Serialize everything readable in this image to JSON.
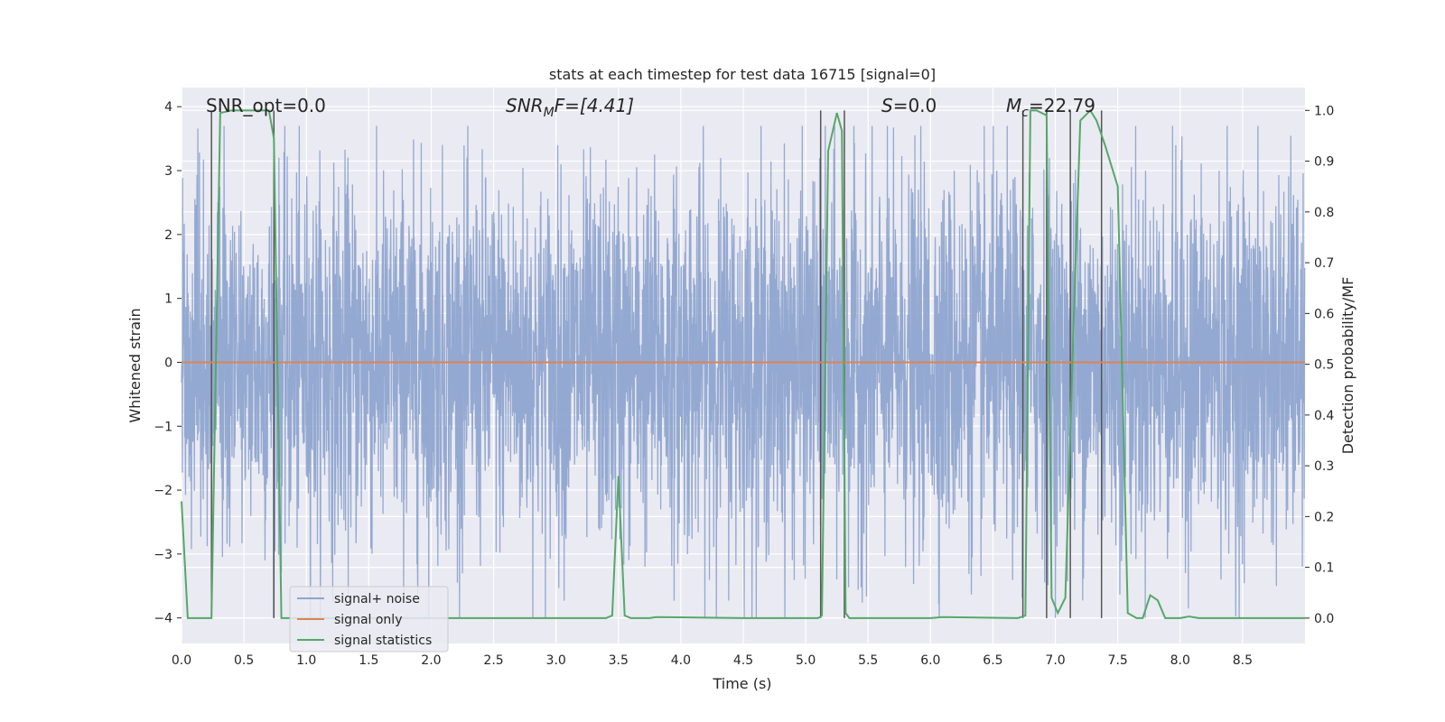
{
  "chart_data": {
    "type": "line",
    "title": "stats at each timestep for test data 16715 [signal=0]",
    "xlabel": "Time (s)",
    "ylabel": "Whitened strain",
    "y2label": "Detection probability/MF",
    "xlim": [
      0.0,
      9.0
    ],
    "ylim": [
      -4.4,
      4.3
    ],
    "y2lim": [
      -0.05,
      1.045
    ],
    "xticks": [
      "0.0",
      "0.5",
      "1.0",
      "1.5",
      "2.0",
      "2.5",
      "3.0",
      "3.5",
      "4.0",
      "4.5",
      "5.0",
      "5.5",
      "6.0",
      "6.5",
      "7.0",
      "7.5",
      "8.0",
      "8.5"
    ],
    "yticks": [
      "4",
      "3",
      "2",
      "1",
      "0",
      "−1",
      "−2",
      "−3",
      "−4"
    ],
    "y2ticks": [
      "1.0",
      "0.9",
      "0.8",
      "0.7",
      "0.6",
      "0.5",
      "0.4",
      "0.3",
      "0.2",
      "0.1",
      "0.0"
    ],
    "annotations": {
      "snr_opt": "SNR_opt=0.0",
      "snr_mf_sym": "SNR",
      "snr_mf_sub": "M",
      "snr_mf_rest": "F=[4.41]",
      "s_sym": "S",
      "s_rest": "=0.0",
      "mc_sym": "M",
      "mc_sub": "c",
      "mc_rest": "=22.79"
    },
    "legend": {
      "placement": "lower-left",
      "entries": [
        "signal+ noise",
        "signal only",
        "signal statistics"
      ]
    },
    "colors": {
      "noise": "#8fa5cf",
      "signal": "#dd8452",
      "stats": "#55a868",
      "vlines": "#555555",
      "background": "#eaeaf2"
    },
    "vlines_x": [
      0.24,
      0.74,
      5.12,
      5.31,
      6.74,
      6.93,
      7.12,
      7.37
    ],
    "series": [
      {
        "name": "signal statistics",
        "axis": "right",
        "x": [
          0.0,
          0.05,
          0.24,
          0.31,
          0.4,
          0.7,
          0.74,
          0.8,
          1.0,
          2.0,
          3.0,
          3.4,
          3.45,
          3.5,
          3.55,
          3.6,
          3.75,
          3.8,
          4.5,
          5.1,
          5.13,
          5.18,
          5.25,
          5.29,
          5.32,
          5.35,
          5.45,
          6.0,
          6.1,
          6.7,
          6.76,
          6.8,
          6.85,
          6.93,
          6.97,
          7.02,
          7.08,
          7.15,
          7.2,
          7.28,
          7.33,
          7.4,
          7.5,
          7.58,
          7.65,
          7.7,
          7.76,
          7.82,
          7.88,
          8.0,
          8.07,
          8.15,
          9.0
        ],
        "values": [
          0.23,
          0.0,
          0.0,
          0.995,
          1.0,
          1.0,
          0.945,
          0.0,
          0.0,
          0.0,
          0.0,
          0.0,
          0.005,
          0.28,
          0.005,
          0.0,
          0.0,
          0.002,
          0.0,
          0.0,
          0.005,
          0.92,
          0.995,
          0.96,
          0.01,
          0.0,
          0.0,
          0.0,
          0.002,
          0.0,
          0.005,
          1.0,
          1.0,
          0.99,
          0.04,
          0.01,
          0.04,
          0.61,
          0.98,
          1.0,
          0.98,
          0.93,
          0.85,
          0.01,
          0.0,
          0.0,
          0.045,
          0.035,
          0.0,
          0.0,
          0.003,
          0.0,
          0.0
        ]
      },
      {
        "name": "signal only",
        "axis": "left",
        "x": [
          0.0,
          9.0
        ],
        "values": [
          0.0,
          0.0
        ]
      },
      {
        "name": "signal+ noise",
        "axis": "left",
        "description_of_values": "dense noise trace; envelope roughly ±1.5 with peaks to about 3.6 and troughs to about -4.0",
        "samples": 9000,
        "amplitude_typical": 1.5,
        "peak_max": 3.7,
        "trough_min": -4.0
      }
    ]
  }
}
